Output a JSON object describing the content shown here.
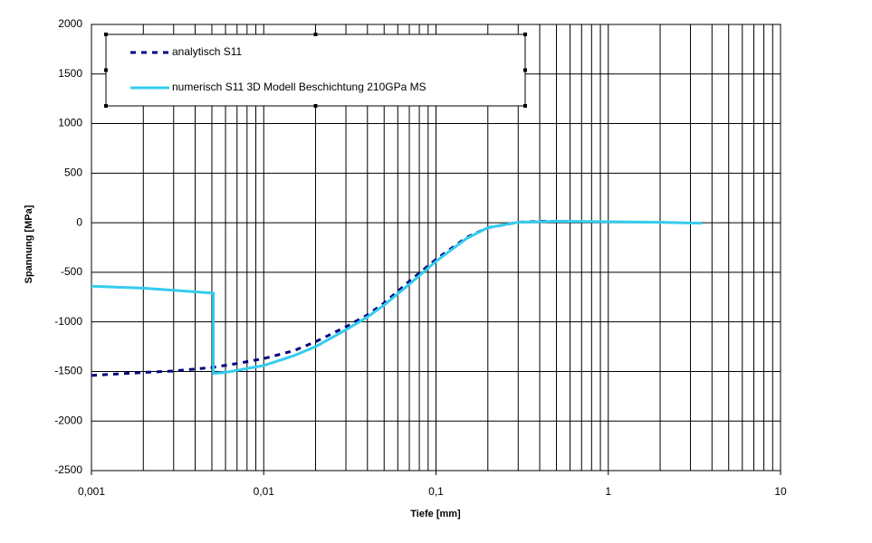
{
  "chart_data": {
    "type": "line",
    "x_label": "Tiefe [mm]",
    "y_label": "Spannung [MPa]",
    "xscale": "log",
    "xlim": [
      0.001,
      10
    ],
    "xticks": [
      {
        "value": 0.001,
        "label": "0,001"
      },
      {
        "value": 0.01,
        "label": "0,01"
      },
      {
        "value": 0.1,
        "label": "0,1"
      },
      1,
      10
    ],
    "ylim": [
      -2500,
      2000
    ],
    "yticks": [
      2000,
      1500,
      1000,
      500,
      0,
      -500,
      -1000,
      -1500,
      -2000,
      -2500
    ],
    "grid": true,
    "legend": "upper left",
    "series": [
      {
        "name": "analytisch S11",
        "color": "#000080",
        "style": "dashed",
        "x": [
          0.001,
          0.002,
          0.003,
          0.005,
          0.007,
          0.01,
          0.015,
          0.02,
          0.03,
          0.04,
          0.05,
          0.07,
          0.1,
          0.15,
          0.2,
          0.3,
          0.4,
          0.6
        ],
        "values": [
          -1540,
          -1510,
          -1495,
          -1460,
          -1420,
          -1370,
          -1290,
          -1200,
          -1050,
          -930,
          -810,
          -590,
          -370,
          -150,
          -50,
          5,
          15,
          15
        ]
      },
      {
        "name": "numerisch S11 3D Modell Beschichtung 210GPa MS",
        "color": "#33CCEE",
        "style": "solid",
        "x": [
          0.001,
          0.002,
          0.0051,
          0.0051,
          0.006,
          0.01,
          0.015,
          0.02,
          0.03,
          0.04,
          0.05,
          0.07,
          0.1,
          0.15,
          0.2,
          0.3,
          0.5,
          1,
          2,
          3.5
        ],
        "values": [
          -640,
          -660,
          -710,
          -1520,
          -1510,
          -1440,
          -1340,
          -1250,
          -1080,
          -950,
          -830,
          -620,
          -390,
          -160,
          -50,
          5,
          15,
          10,
          5,
          -5
        ]
      }
    ]
  }
}
